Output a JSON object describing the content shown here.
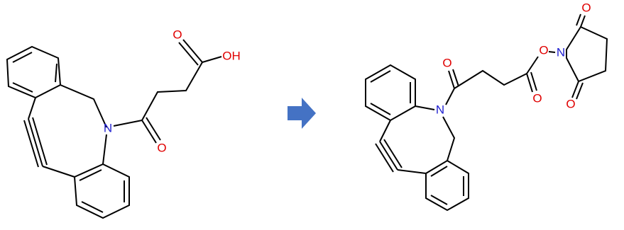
{
  "reactant": {
    "atoms": [
      "O",
      "OH",
      "N",
      "O"
    ]
  },
  "product": {
    "atoms": [
      "O",
      "N",
      "O",
      "O",
      "N",
      "O",
      "O"
    ]
  }
}
